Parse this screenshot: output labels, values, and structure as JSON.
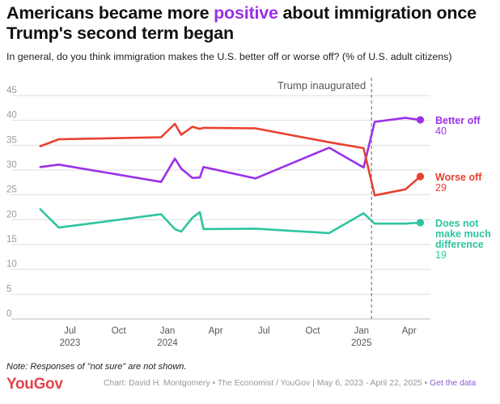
{
  "title": {
    "pre": "Americans became more ",
    "highlight": "positive",
    "post": " about immigration once Trump's second term began"
  },
  "subtitle": "In general, do you think immigration makes the U.S. better off or worse off? (% of U.S. adult citizens)",
  "note": "Note: Responses of \"not sure\" are not shown.",
  "footer": {
    "logo": "YouGov",
    "credit": "Chart: David H. Montgomery • The Economist / YouGov | May 6, 2023 - April 22, 2025 •",
    "link": "Get the data"
  },
  "colors": {
    "better": "#9b30e8",
    "worse": "#e8402f",
    "neutral": "#2ec4a0",
    "grid": "#dedede",
    "axis_text": "#9a9a9a",
    "annotation": "#9a9a9a"
  },
  "chart_data": {
    "type": "line",
    "x_type": "date",
    "xlim": [
      "2023-04-15",
      "2025-05-05"
    ],
    "ylim": [
      0,
      45
    ],
    "y_ticks": [
      0,
      5,
      10,
      15,
      20,
      25,
      30,
      35,
      40,
      45
    ],
    "x_ticks": [
      {
        "date": "2023-07-01",
        "label": "Jul",
        "year": "2023"
      },
      {
        "date": "2023-10-01",
        "label": "Oct",
        "year": ""
      },
      {
        "date": "2024-01-01",
        "label": "Jan",
        "year": "2024"
      },
      {
        "date": "2024-04-01",
        "label": "Apr",
        "year": ""
      },
      {
        "date": "2024-07-01",
        "label": "Jul",
        "year": ""
      },
      {
        "date": "2024-10-01",
        "label": "Oct",
        "year": ""
      },
      {
        "date": "2025-01-01",
        "label": "Jan",
        "year": "2025"
      },
      {
        "date": "2025-04-01",
        "label": "Apr",
        "year": ""
      }
    ],
    "grid": true,
    "annotation": {
      "date": "2025-01-20",
      "label": "Trump inaugurated"
    },
    "series": [
      {
        "name": "Better off",
        "key": "better",
        "label_lines": [
          "Better off"
        ],
        "final_value": "40",
        "points": [
          [
            "2023-05-06",
            30.6
          ],
          [
            "2023-06-10",
            31.1
          ],
          [
            "2023-12-20",
            27.6
          ],
          [
            "2024-01-15",
            32.3
          ],
          [
            "2024-01-27",
            30.3
          ],
          [
            "2024-02-17",
            28.4
          ],
          [
            "2024-03-02",
            28.5
          ],
          [
            "2024-03-09",
            30.6
          ],
          [
            "2024-06-15",
            28.3
          ],
          [
            "2024-11-01",
            34.5
          ],
          [
            "2025-01-05",
            30.5
          ],
          [
            "2025-01-26",
            39.7
          ],
          [
            "2025-03-25",
            40.5
          ],
          [
            "2025-04-22",
            40.1
          ]
        ]
      },
      {
        "name": "Worse off",
        "key": "worse",
        "label_lines": [
          "Worse off"
        ],
        "final_value": "29",
        "points": [
          [
            "2023-05-06",
            34.8
          ],
          [
            "2023-06-10",
            36.2
          ],
          [
            "2023-12-20",
            36.6
          ],
          [
            "2024-01-15",
            39.3
          ],
          [
            "2024-01-27",
            37.1
          ],
          [
            "2024-02-17",
            38.7
          ],
          [
            "2024-03-02",
            38.3
          ],
          [
            "2024-03-09",
            38.5
          ],
          [
            "2024-06-15",
            38.4
          ],
          [
            "2024-11-01",
            35.6
          ],
          [
            "2025-01-05",
            34.4
          ],
          [
            "2025-01-26",
            24.9
          ],
          [
            "2025-03-25",
            26.1
          ],
          [
            "2025-04-22",
            28.7
          ]
        ]
      },
      {
        "name": "Does not make much difference",
        "key": "neutral",
        "label_lines": [
          "Does not",
          "make much",
          "difference"
        ],
        "final_value": "19",
        "points": [
          [
            "2023-05-06",
            22.1
          ],
          [
            "2023-06-10",
            18.4
          ],
          [
            "2023-12-20",
            21.1
          ],
          [
            "2024-01-15",
            18.1
          ],
          [
            "2024-01-27",
            17.6
          ],
          [
            "2024-02-17",
            20.4
          ],
          [
            "2024-03-02",
            21.5
          ],
          [
            "2024-03-09",
            18.1
          ],
          [
            "2024-06-15",
            18.2
          ],
          [
            "2024-11-01",
            17.3
          ],
          [
            "2025-01-05",
            21.3
          ],
          [
            "2025-01-26",
            19.2
          ],
          [
            "2025-03-25",
            19.2
          ],
          [
            "2025-04-22",
            19.4
          ]
        ]
      }
    ]
  }
}
